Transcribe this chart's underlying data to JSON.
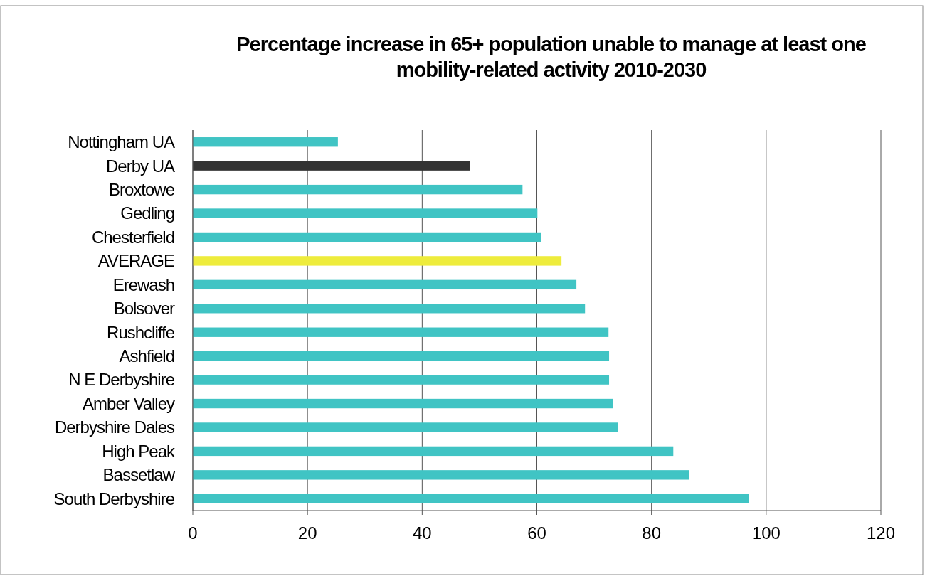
{
  "chart_data": {
    "type": "bar",
    "orientation": "horizontal",
    "title": "Percentage increase in 65+ population unable to manage at least one mobility-related activity 2010-2030",
    "categories": [
      "Nottingham UA",
      "Derby UA",
      "Broxtowe",
      "Gedling",
      "Chesterfield",
      "AVERAGE",
      "Erewash",
      "Bolsover",
      "Rushcliffe",
      "Ashfield",
      "N E Derbyshire",
      "Amber Valley",
      "Derbyshire Dales",
      "High Peak",
      "Bassetlaw",
      "South Derbyshire"
    ],
    "values": [
      25.3,
      48.3,
      57.5,
      60.1,
      60.7,
      64.3,
      66.9,
      68.4,
      72.5,
      72.6,
      72.6,
      73.3,
      74.1,
      83.8,
      86.6,
      97.0
    ],
    "colors": [
      "#40c4c4",
      "#333333",
      "#40c4c4",
      "#40c4c4",
      "#40c4c4",
      "#eeec3c",
      "#40c4c4",
      "#40c4c4",
      "#40c4c4",
      "#40c4c4",
      "#40c4c4",
      "#40c4c4",
      "#40c4c4",
      "#40c4c4",
      "#40c4c4",
      "#40c4c4"
    ],
    "xlim": [
      0,
      120
    ],
    "xticks": [
      0,
      20,
      40,
      60,
      80,
      100,
      120
    ],
    "grid": "x"
  }
}
